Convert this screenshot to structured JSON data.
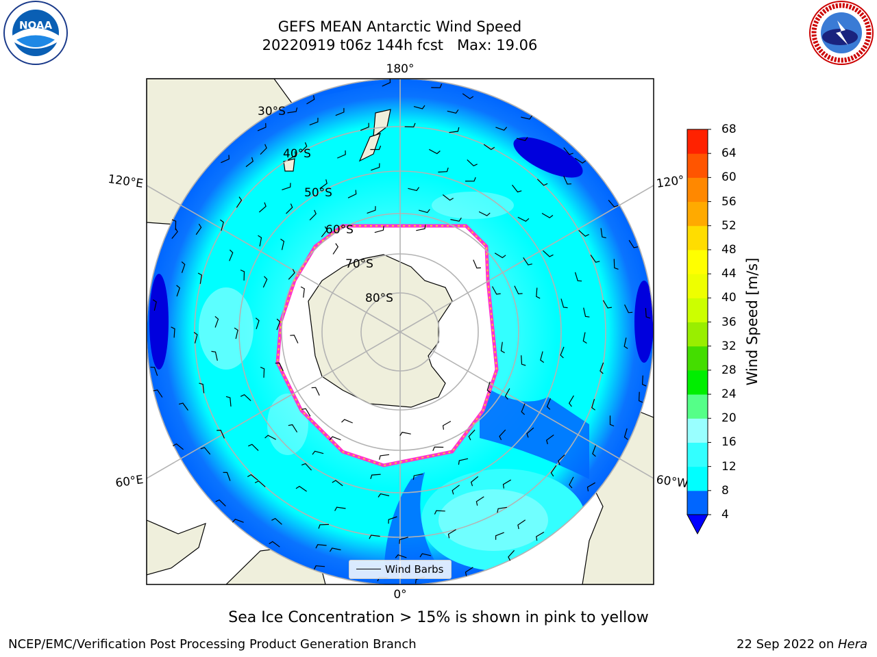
{
  "header": {
    "title_line1": "GEFS MEAN Antarctic Wind Speed",
    "title_line2": "20220919 t06z 144h fcst   Max: 19.06"
  },
  "map": {
    "projection": "south-polar-stereographic",
    "lat_labels": [
      "30°S",
      "40°S",
      "50°S",
      "60°S",
      "70°S",
      "80°S"
    ],
    "lon_labels": {
      "top": "180°",
      "bottom": "0°",
      "left_upper": "120°E",
      "left_lower": "60°E",
      "right_upper": "120°",
      "right_lower": "60°W"
    },
    "colors": {
      "land": "#efefdc",
      "ice_area": "#ffffff",
      "ice_edge_pink": "#ff33cc",
      "ice_edge_yellow": "#ffcc33",
      "grid": "#b3b3b3"
    }
  },
  "colorbar": {
    "label": "Wind Speed [m/s]",
    "ticks": [
      "4",
      "8",
      "12",
      "16",
      "20",
      "24",
      "28",
      "32",
      "36",
      "40",
      "44",
      "48",
      "52",
      "56",
      "60",
      "64",
      "68"
    ],
    "colors": [
      "#0066ff",
      "#00ffff",
      "#33ffff",
      "#99ffff",
      "#55ff88",
      "#00ee00",
      "#44dd00",
      "#99ee00",
      "#ccff00",
      "#eeff00",
      "#ffff00",
      "#ffdd00",
      "#ffaa00",
      "#ff8800",
      "#ff5500",
      "#ff2200"
    ],
    "under_color": "#0000ff"
  },
  "legend": {
    "label": "Wind Barbs"
  },
  "subtitle": "Sea Ice Concentration > 15% is shown in pink to yellow",
  "footer": {
    "left": "NCEP/EMC/Verification Post Processing Product Generation Branch",
    "right_date": "22 Sep 2022 on ",
    "right_host": "Hera"
  },
  "logos": {
    "noaa_text": "NOAA",
    "nws_text": "NATIONAL WEATHER SERVICE"
  }
}
